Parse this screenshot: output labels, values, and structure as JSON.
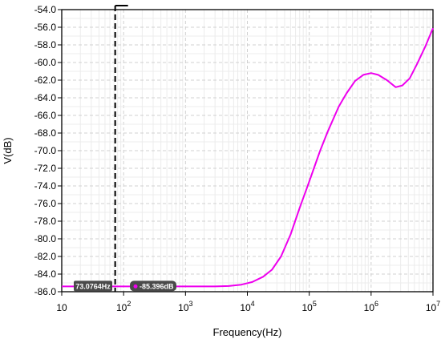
{
  "chart_data": {
    "type": "line",
    "title": "",
    "xlabel": "Frequency(Hz)",
    "ylabel": "V(dB)",
    "x_scale": "log",
    "xlim": [
      10,
      10000000
    ],
    "ylim": [
      -86.0,
      -54.0
    ],
    "grid": true,
    "x_ticks": [
      {
        "value": 10,
        "label": "10",
        "sup": ""
      },
      {
        "value": 100,
        "label": "10",
        "sup": "2"
      },
      {
        "value": 1000,
        "label": "10",
        "sup": "3"
      },
      {
        "value": 10000,
        "label": "10",
        "sup": "4"
      },
      {
        "value": 100000,
        "label": "10",
        "sup": "5"
      },
      {
        "value": 1000000,
        "label": "10",
        "sup": "6"
      },
      {
        "value": 10000000,
        "label": "10",
        "sup": "7"
      }
    ],
    "y_ticks": [
      -54.0,
      -56.0,
      -58.0,
      -60.0,
      -62.0,
      -64.0,
      -66.0,
      -68.0,
      -70.0,
      -72.0,
      -74.0,
      -76.0,
      -78.0,
      -80.0,
      -82.0,
      -84.0,
      -86.0
    ],
    "y_tick_labels": [
      "-54.0",
      "-56.0",
      "-58.0",
      "-60.0",
      "-62.0",
      "-64.0",
      "-66.0",
      "-68.0",
      "-70.0",
      "-72.0",
      "-74.0",
      "-76.0",
      "-78.0",
      "-80.0",
      "-82.0",
      "-84.0",
      "-86.0"
    ],
    "series": [
      {
        "color": "#ee00ee",
        "points": [
          [
            10,
            -85.4
          ],
          [
            100,
            -85.4
          ],
          [
            1000,
            -85.4
          ],
          [
            3000,
            -85.4
          ],
          [
            5000,
            -85.35
          ],
          [
            8000,
            -85.2
          ],
          [
            12000,
            -84.9
          ],
          [
            18000,
            -84.3
          ],
          [
            25000,
            -83.5
          ],
          [
            35000,
            -82.0
          ],
          [
            50000,
            -79.5
          ],
          [
            70000,
            -76.5
          ],
          [
            100000,
            -73.5
          ],
          [
            150000,
            -70.0
          ],
          [
            200000,
            -67.8
          ],
          [
            300000,
            -65.0
          ],
          [
            400000,
            -63.5
          ],
          [
            550000,
            -62.1
          ],
          [
            750000,
            -61.4
          ],
          [
            1000000,
            -61.2
          ],
          [
            1300000,
            -61.4
          ],
          [
            1800000,
            -62.0
          ],
          [
            2500000,
            -62.8
          ],
          [
            3200000,
            -62.6
          ],
          [
            4200000,
            -61.8
          ],
          [
            5500000,
            -60.2
          ],
          [
            7500000,
            -58.2
          ],
          [
            10000000,
            -56.1
          ]
        ]
      }
    ],
    "cursor": {
      "x": 73.0764,
      "color": "#000000",
      "x_label": "73.0764Hz",
      "y_label": "-85.396dB",
      "y_value": -85.396
    }
  }
}
